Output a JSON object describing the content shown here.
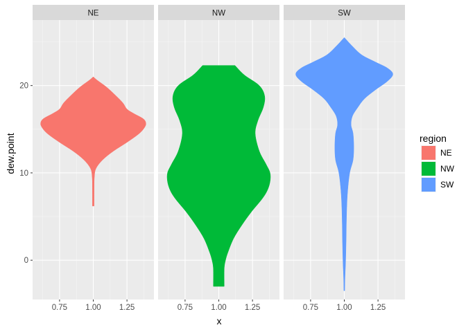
{
  "chart_data": {
    "type": "violin",
    "xlabel": "x",
    "ylabel": "dew.point",
    "xlim": [
      0.55,
      1.45
    ],
    "ylim": [
      -4.5,
      27.5
    ],
    "x_ticks": [
      0.75,
      1.0,
      1.25
    ],
    "x_tick_labels": [
      "0.75",
      "1.00",
      "1.25"
    ],
    "y_ticks": [
      0,
      10,
      20
    ],
    "y_tick_labels": [
      "0",
      "10",
      "20"
    ],
    "grid": true,
    "legend": {
      "title": "region",
      "position": "right",
      "entries": [
        {
          "label": "NE",
          "color": "#F8766D"
        },
        {
          "label": "NW",
          "color": "#00BA38"
        },
        {
          "label": "SW",
          "color": "#619CFF"
        }
      ]
    },
    "panels": [
      {
        "facet": "NE",
        "color": "#F8766D",
        "x_center": 1.0,
        "profile": [
          [
            6.2,
            0.006
          ],
          [
            8,
            0.006
          ],
          [
            9.5,
            0.008
          ],
          [
            10.5,
            0.02
          ],
          [
            11.5,
            0.07
          ],
          [
            12.5,
            0.15
          ],
          [
            13.5,
            0.25
          ],
          [
            14.5,
            0.34
          ],
          [
            15.2,
            0.38
          ],
          [
            15.7,
            0.39
          ],
          [
            16.2,
            0.37
          ],
          [
            16.8,
            0.3
          ],
          [
            17.3,
            0.25
          ],
          [
            18,
            0.22
          ],
          [
            18.8,
            0.17
          ],
          [
            19.8,
            0.1
          ],
          [
            20.6,
            0.03
          ],
          [
            21.0,
            0.0
          ]
        ]
      },
      {
        "facet": "NW",
        "color": "#00BA38",
        "x_center": 1.0,
        "profile": [
          [
            -3,
            0.04
          ],
          [
            -1,
            0.04
          ],
          [
            0,
            0.05
          ],
          [
            1,
            0.07
          ],
          [
            2.5,
            0.11
          ],
          [
            4,
            0.17
          ],
          [
            5.5,
            0.24
          ],
          [
            7,
            0.32
          ],
          [
            8,
            0.36
          ],
          [
            9,
            0.38
          ],
          [
            10,
            0.38
          ],
          [
            11,
            0.35
          ],
          [
            12.5,
            0.3
          ],
          [
            14.5,
            0.27
          ],
          [
            16,
            0.29
          ],
          [
            17.5,
            0.33
          ],
          [
            18.8,
            0.34
          ],
          [
            20,
            0.3
          ],
          [
            21.2,
            0.19
          ],
          [
            22.3,
            0.12
          ]
        ]
      },
      {
        "facet": "SW",
        "color": "#619CFF",
        "x_center": 1.0,
        "profile": [
          [
            -3.5,
            0.003
          ],
          [
            -2,
            0.005
          ],
          [
            0,
            0.01
          ],
          [
            2,
            0.013
          ],
          [
            4,
            0.015
          ],
          [
            6,
            0.018
          ],
          [
            8,
            0.025
          ],
          [
            10,
            0.04
          ],
          [
            11.5,
            0.065
          ],
          [
            13,
            0.07
          ],
          [
            14.5,
            0.065
          ],
          [
            15.5,
            0.05
          ],
          [
            16.5,
            0.06
          ],
          [
            17.5,
            0.1
          ],
          [
            18.5,
            0.15
          ],
          [
            19.5,
            0.23
          ],
          [
            20.5,
            0.32
          ],
          [
            21.3,
            0.36
          ],
          [
            22,
            0.32
          ],
          [
            22.7,
            0.23
          ],
          [
            23.5,
            0.13
          ],
          [
            24.5,
            0.06
          ],
          [
            25.5,
            0.0
          ]
        ]
      }
    ]
  }
}
